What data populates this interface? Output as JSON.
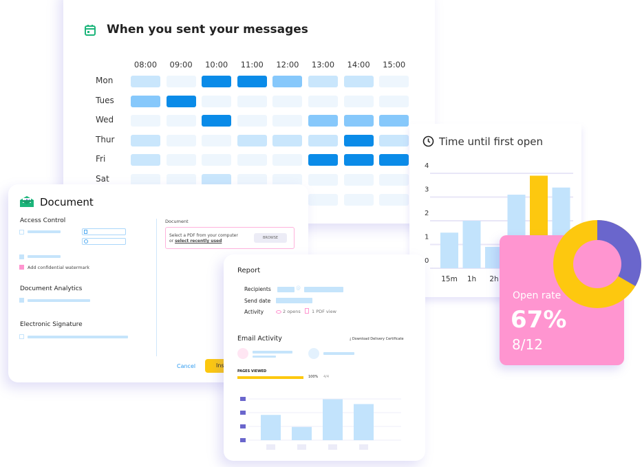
{
  "heatmap": {
    "title": "When you sent your messages",
    "icon": "calendar-icon",
    "columns": [
      "08:00",
      "09:00",
      "10:00",
      "11:00",
      "12:00",
      "13:00",
      "14:00",
      "15:00"
    ],
    "rows": [
      "Mon",
      "Tues",
      "Wed",
      "Thur",
      "Fri",
      "Sat",
      ""
    ],
    "levels": [
      [
        1,
        0,
        3,
        3,
        2,
        1,
        1,
        0
      ],
      [
        2,
        3,
        0,
        0,
        0,
        0,
        0,
        0
      ],
      [
        0,
        0,
        3,
        0,
        0,
        2,
        2,
        2
      ],
      [
        1,
        0,
        0,
        1,
        1,
        1,
        3,
        1
      ],
      [
        1,
        0,
        0,
        0,
        0,
        3,
        3,
        3
      ],
      [
        0,
        0,
        1,
        0,
        0,
        0,
        0,
        0
      ],
      [
        0,
        0,
        0,
        0,
        0,
        0,
        0,
        0
      ]
    ],
    "colors": [
      "#eef6fd",
      "#c9e6fc",
      "#86c8fb",
      "#0a8be8"
    ]
  },
  "time_chart": {
    "title": "Time until first open",
    "icon": "clock-icon",
    "chart_data": {
      "type": "bar",
      "categories": [
        "15m",
        "1h",
        "2h",
        "",
        "",
        "",
        ""
      ],
      "values": [
        1.5,
        2,
        0.9,
        3.1,
        3.9,
        3.4,
        0
      ],
      "highlight_index": 4,
      "ylim": [
        0,
        4
      ],
      "yticks": [
        "0",
        "1",
        "2",
        "3",
        "4"
      ],
      "colors": {
        "bar": "#c2e3fc",
        "highlight": "#fdc80f"
      },
      "grid": true
    }
  },
  "document": {
    "title": "Document",
    "access_control": "Access Control",
    "watermark_label": "Add confidential watermark",
    "analytics": "Document Analytics",
    "signature": "Electronic Signature",
    "doc_label": "Document",
    "upload_text": "Select a PDF from your computer",
    "upload_or": "or",
    "upload_link": "select recently used",
    "browse": "BROWSE",
    "cancel": "Cancel",
    "insert": "Ins"
  },
  "report": {
    "title": "Report",
    "recipients": "Recipients",
    "send_date": "Send date",
    "activity": "Activity",
    "opens": "2 opens",
    "pdf_views": "1 PDF view",
    "email_activity": "Email Activity",
    "download": "Download Delivery Certificate",
    "pages_viewed": "PAGES VIEWED",
    "progress": 100,
    "progress_label": "100%",
    "progress_extra": "4/4",
    "chart_data": {
      "type": "bar",
      "values": [
        2.1,
        1.1,
        3.4,
        3.0
      ],
      "colors": {
        "bar": "#c2e3fc"
      }
    }
  },
  "open_rate": {
    "label": "Open rate",
    "value": "67%",
    "fraction": "8/12",
    "donut": {
      "opened": 8,
      "total": 12,
      "colors": {
        "main": "#fdc80f",
        "rest": "#6a66cc",
        "bg": "#ff95d0"
      }
    }
  }
}
